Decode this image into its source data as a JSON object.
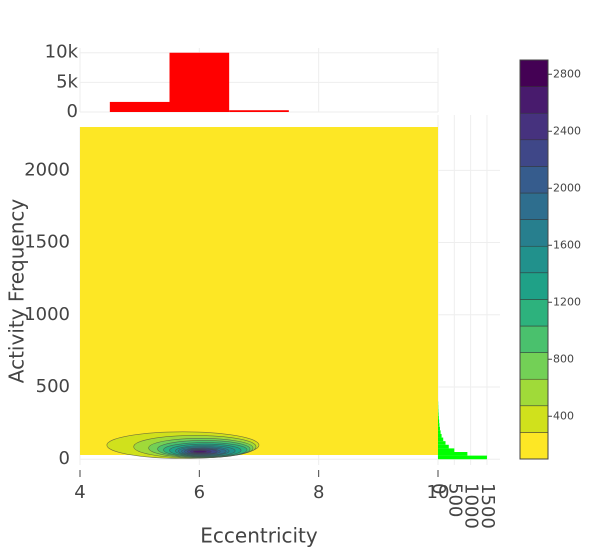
{
  "chart_data": {
    "type": "contour",
    "x_label": "Eccentricity",
    "y_label": "Activity Frequency",
    "xlim": [
      4,
      10
    ],
    "xticks": [
      4,
      6,
      8,
      10
    ],
    "ylim": [
      -40,
      2300
    ],
    "yticks": [
      0,
      500,
      1000,
      1500,
      2000
    ],
    "grid": true,
    "contours": [
      {
        "level": 300,
        "color": "#d0e11c",
        "x": [
          4.45,
          7.0
        ],
        "y": [
          5,
          190
        ]
      },
      {
        "level": 500,
        "color": "#a0da39",
        "x": [
          4.9,
          6.95
        ],
        "y": [
          8,
          165
        ]
      },
      {
        "level": 700,
        "color": "#73d056",
        "x": [
          5.15,
          6.9
        ],
        "y": [
          10,
          145
        ]
      },
      {
        "level": 900,
        "color": "#4ac16d",
        "x": [
          5.3,
          6.85
        ],
        "y": [
          12,
          130
        ]
      },
      {
        "level": 1100,
        "color": "#2db27d",
        "x": [
          5.4,
          6.8
        ],
        "y": [
          15,
          115
        ]
      },
      {
        "level": 1300,
        "color": "#1fa187",
        "x": [
          5.5,
          6.7
        ],
        "y": [
          18,
          105
        ]
      },
      {
        "level": 1500,
        "color": "#21918c",
        "x": [
          5.6,
          6.6
        ],
        "y": [
          20,
          95
        ]
      },
      {
        "level": 1700,
        "color": "#277f8e",
        "x": [
          5.65,
          6.5
        ],
        "y": [
          24,
          88
        ]
      },
      {
        "level": 1900,
        "color": "#2e6e8e",
        "x": [
          5.7,
          6.45
        ],
        "y": [
          28,
          80
        ]
      },
      {
        "level": 2100,
        "color": "#365c8d",
        "x": [
          5.75,
          6.35
        ],
        "y": [
          32,
          75
        ]
      },
      {
        "level": 2300,
        "color": "#3f4788",
        "x": [
          5.8,
          6.3
        ],
        "y": [
          36,
          70
        ]
      },
      {
        "level": 2500,
        "color": "#46327e",
        "x": [
          5.85,
          6.2
        ],
        "y": [
          40,
          65
        ]
      },
      {
        "level": 2700,
        "color": "#481b6d",
        "x": [
          5.9,
          6.12
        ],
        "y": [
          45,
          60
        ]
      }
    ],
    "colorbar": {
      "range": [
        100,
        2900
      ],
      "colors": [
        "#fde725",
        "#d0e11c",
        "#a0da39",
        "#73d056",
        "#4ac16d",
        "#2db27d",
        "#1fa187",
        "#21918c",
        "#277f8e",
        "#2e6e8e",
        "#365c8d",
        "#3f4788",
        "#46327e",
        "#481b6d",
        "#440154"
      ],
      "ticks": [
        400,
        800,
        1200,
        1600,
        2000,
        2400,
        2800
      ]
    },
    "top_histogram": {
      "type": "histogram",
      "color": "#ff0000",
      "bins": [
        4.5,
        5.5,
        6.5,
        7.5
      ],
      "counts": [
        1700,
        10000,
        300
      ],
      "ylim": [
        0,
        10800
      ],
      "yticks": [
        0,
        {
          "value": 5000,
          "label": "5k"
        },
        {
          "value": 10000,
          "label": "10k"
        }
      ]
    },
    "right_histogram": {
      "type": "histogram",
      "color": "#00ff00",
      "bins": [
        0,
        25,
        50,
        75,
        100,
        125,
        150,
        175,
        200,
        225,
        250,
        275,
        300,
        325,
        350,
        375,
        400
      ],
      "counts": [
        1500,
        900,
        500,
        330,
        230,
        160,
        110,
        80,
        60,
        45,
        35,
        25,
        18,
        12,
        8,
        5
      ],
      "xlim": [
        0,
        1900
      ],
      "xticks": [
        0,
        500,
        1000,
        1500
      ]
    }
  }
}
